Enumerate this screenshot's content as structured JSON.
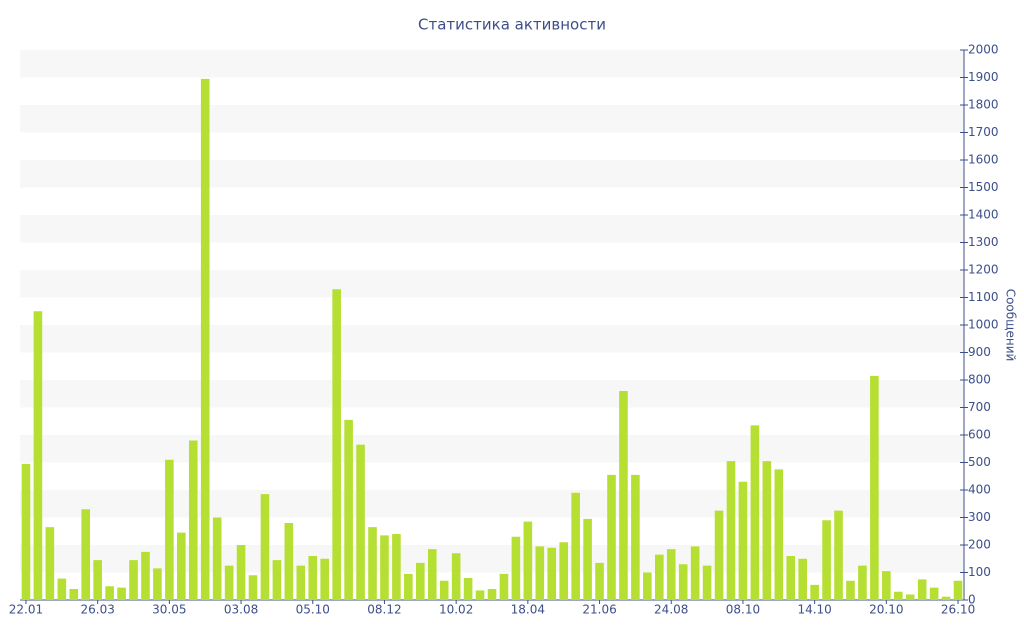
{
  "chart_data": {
    "type": "bar",
    "title": "Статистика активности",
    "y_axis_label": "Сообщений",
    "color": "#b6df33",
    "band_color": "#f7f7f7",
    "grid": true,
    "categories": [
      "22.01",
      null,
      null,
      null,
      null,
      null,
      "26.03",
      null,
      null,
      null,
      null,
      null,
      "30.05",
      null,
      null,
      null,
      null,
      null,
      "03.08",
      null,
      null,
      null,
      null,
      null,
      "05.10",
      null,
      null,
      null,
      null,
      null,
      "08.12",
      null,
      null,
      null,
      null,
      null,
      "10.02",
      null,
      null,
      null,
      null,
      null,
      "18.04",
      null,
      null,
      null,
      null,
      null,
      "21.06",
      null,
      null,
      null,
      null,
      null,
      "24.08",
      null,
      null,
      null,
      null,
      null,
      "08.10",
      null,
      null,
      null,
      null,
      null,
      "14.10",
      null,
      null,
      null,
      null,
      null,
      "20.10",
      null,
      null,
      null,
      null,
      null,
      "26.10"
    ],
    "values": [
      495,
      1050,
      265,
      78,
      40,
      330,
      145,
      50,
      45,
      145,
      175,
      115,
      510,
      245,
      580,
      1895,
      300,
      125,
      200,
      90,
      385,
      145,
      280,
      125,
      160,
      150,
      1130,
      655,
      565,
      265,
      235,
      240,
      95,
      135,
      185,
      70,
      170,
      80,
      35,
      40,
      95,
      230,
      285,
      195,
      190,
      210,
      390,
      295,
      135,
      455,
      760,
      455,
      100,
      165,
      185,
      130,
      195,
      125,
      325,
      505,
      430,
      635,
      505,
      475,
      160,
      150,
      55,
      290,
      325,
      70,
      125,
      815,
      105,
      30,
      20,
      75,
      45,
      12,
      70
    ],
    "ylim": [
      0,
      2000
    ],
    "yticks": [
      0,
      100,
      200,
      300,
      400,
      500,
      600,
      700,
      800,
      900,
      1000,
      1100,
      1200,
      1300,
      1400,
      1500,
      1600,
      1700,
      1800,
      1900,
      2000
    ]
  }
}
